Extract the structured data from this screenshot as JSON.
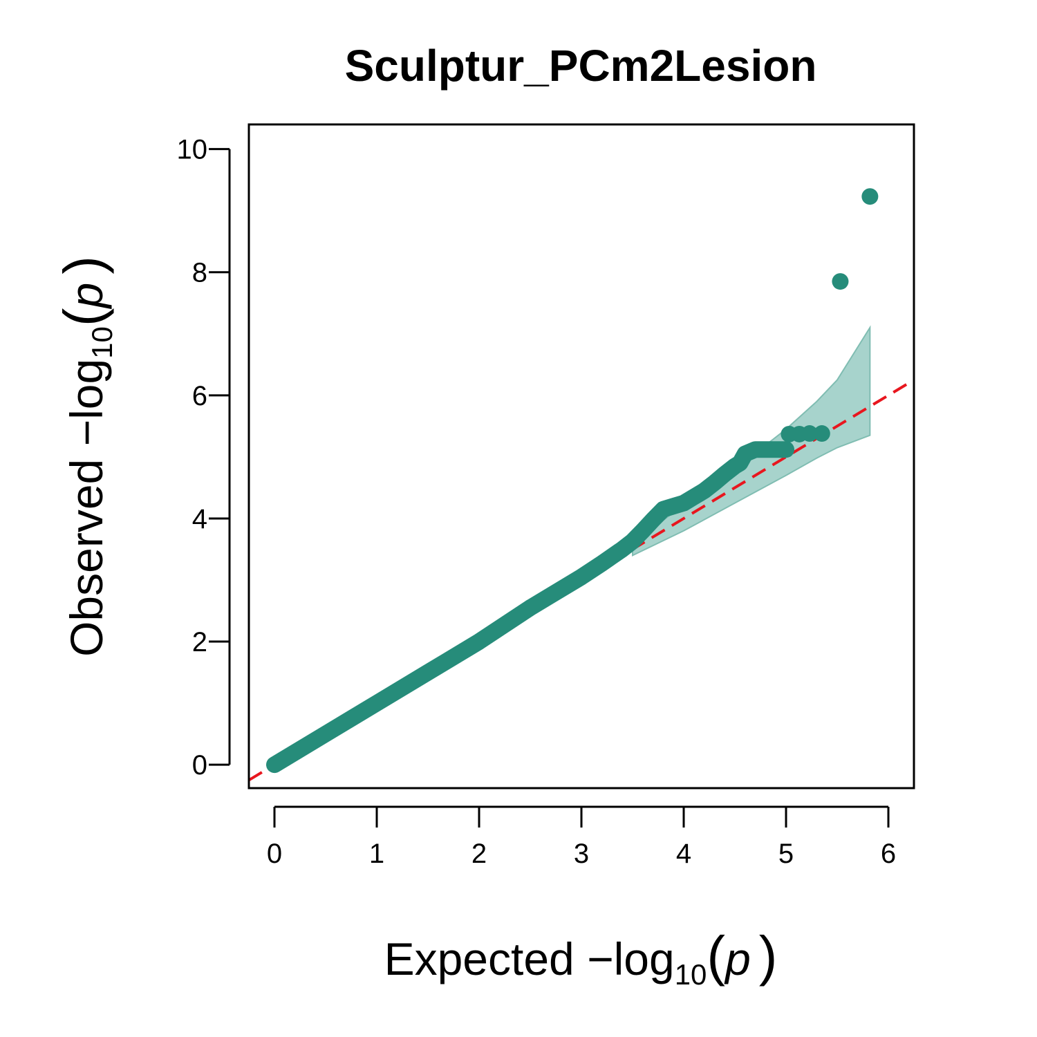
{
  "chart_data": {
    "type": "scatter",
    "title": "Sculptur_PCm2Lesion",
    "xlabel": {
      "prefix": "Expected  −log",
      "subscript": "10",
      "open_paren": "(",
      "var": "p",
      "close_paren": ")"
    },
    "ylabel": {
      "prefix": "Observed  −log",
      "subscript": "10",
      "open_paren": "(",
      "var": "p",
      "close_paren": ")"
    },
    "xlim": [
      -0.25,
      6.25
    ],
    "ylim": [
      -0.38,
      10.4
    ],
    "x_ticks": [
      0,
      1,
      2,
      3,
      4,
      5,
      6
    ],
    "y_ticks": [
      0,
      2,
      4,
      6,
      8,
      10
    ],
    "grid": false,
    "colors": {
      "points": "#268C7A",
      "band": "#A7D3CC",
      "band_edge": "#80BDB2",
      "reference_line": "#E8161E"
    },
    "reference_line": {
      "slope": 1,
      "intercept": 0,
      "style": "dashed"
    },
    "confidence_band": {
      "x": [
        3.5,
        4.0,
        4.5,
        5.0,
        5.3,
        5.5,
        5.82
      ],
      "upper": [
        3.6,
        4.22,
        4.8,
        5.45,
        5.9,
        6.25,
        7.1
      ],
      "lower": [
        3.4,
        3.8,
        4.25,
        4.7,
        4.98,
        5.15,
        5.35
      ]
    },
    "curve": {
      "x": [
        0.0,
        0.5,
        1.0,
        1.5,
        2.0,
        2.5,
        2.7,
        3.0,
        3.2,
        3.4,
        3.5,
        3.6,
        3.7,
        3.8,
        3.9,
        4.0,
        4.1,
        4.2,
        4.3,
        4.4,
        4.5,
        4.55,
        4.6,
        4.7,
        4.8,
        4.9,
        5.0
      ],
      "y": [
        0.0,
        0.5,
        1.0,
        1.5,
        2.0,
        2.55,
        2.75,
        3.05,
        3.27,
        3.5,
        3.63,
        3.8,
        3.98,
        4.15,
        4.2,
        4.25,
        4.35,
        4.45,
        4.58,
        4.72,
        4.85,
        4.9,
        5.05,
        5.12,
        5.12,
        5.12,
        5.12
      ]
    },
    "points": [
      {
        "x": 5.03,
        "y": 5.37
      },
      {
        "x": 5.13,
        "y": 5.37
      },
      {
        "x": 5.23,
        "y": 5.38
      },
      {
        "x": 5.35,
        "y": 5.38
      },
      {
        "x": 5.53,
        "y": 7.85
      },
      {
        "x": 5.82,
        "y": 9.23
      }
    ]
  }
}
